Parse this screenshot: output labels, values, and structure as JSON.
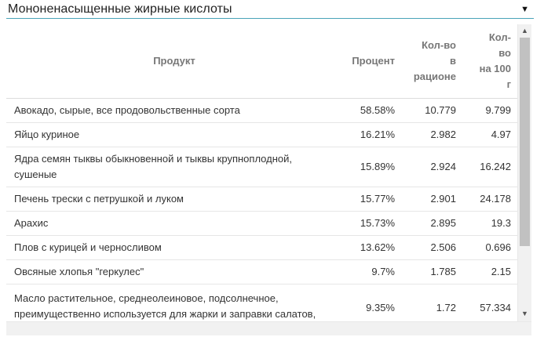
{
  "dropdown": {
    "selected": "Мононенасыщенные жирные кислоты",
    "arrow_icon": "triangle-down-icon"
  },
  "table": {
    "headers": {
      "product": "Продукт",
      "percent": "Процент",
      "qty_ration_lines": [
        "Кол-во",
        "в",
        "рационе"
      ],
      "qty_100g_lines": [
        "Кол-",
        "во",
        "на 100",
        "г"
      ]
    },
    "rows": [
      {
        "product": "Авокадо, сырые, все продовольственные сорта",
        "percent": "58.58%",
        "qty": "10.779",
        "per100": "9.799"
      },
      {
        "product": "Яйцо куриное",
        "percent": "16.21%",
        "qty": "2.982",
        "per100": "4.97"
      },
      {
        "product": "Ядра семян тыквы обыкновенной и тыквы крупноплодной, сушеные",
        "percent": "15.89%",
        "qty": "2.924",
        "per100": "16.242"
      },
      {
        "product": "Печень трески с петрушкой и луком",
        "percent": "15.77%",
        "qty": "2.901",
        "per100": "24.178"
      },
      {
        "product": "Арахис",
        "percent": "15.73%",
        "qty": "2.895",
        "per100": "19.3"
      },
      {
        "product": "Плов с курицей и черносливом",
        "percent": "13.62%",
        "qty": "2.506",
        "per100": "0.696"
      },
      {
        "product": "Овсяные хлопья \"геркулес\"",
        "percent": "9.7%",
        "qty": "1.785",
        "per100": "2.15"
      },
      {
        "product": "Масло растительное, среднеолеиновое, подсолнечное, преимущественно используется для жарки и заправки салатов,",
        "percent": "9.35%",
        "qty": "1.72",
        "per100": "57.334"
      }
    ]
  },
  "scrollbar": {
    "up_icon": "scroll-up-arrow-icon",
    "down_icon": "scroll-down-arrow-icon"
  },
  "colors": {
    "accent_underline": "#4aa3b8",
    "header_text": "#777777",
    "scroll_thumb": "#c1c1c1"
  }
}
